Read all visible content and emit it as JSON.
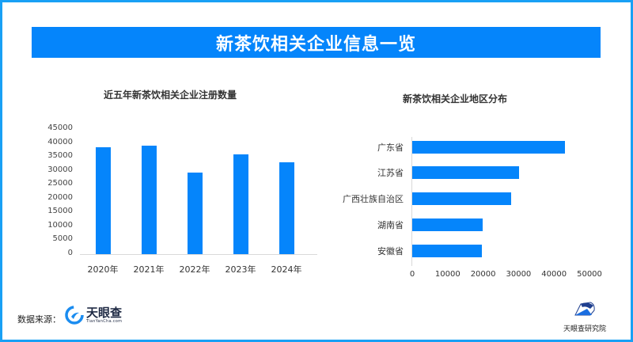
{
  "header": {
    "title": "新茶饮相关企业信息一览"
  },
  "colors": {
    "accent": "#0585fb",
    "frame": "#19a0f5",
    "axis": "#d9d9d9"
  },
  "footer": {
    "source_label": "数据来源：",
    "source_logo": {
      "name": "天眼查",
      "url_text": "TianYanCha.com",
      "icon": "tianyancha-logo-icon"
    },
    "institute_logo": {
      "name": "天眼查研究院",
      "icon": "tianyancha-institute-logo-icon"
    }
  },
  "chart_data": [
    {
      "type": "bar",
      "title": "近五年新茶饮相关企业注册数量",
      "categories": [
        "2020年",
        "2021年",
        "2022年",
        "2023年",
        "2024年"
      ],
      "values": [
        38400,
        39000,
        29300,
        35900,
        33000
      ],
      "xlabel": "",
      "ylabel": "",
      "ylim": [
        0,
        45000
      ],
      "yticks": [
        "45000",
        "40000",
        "35000",
        "30000",
        "25000",
        "20000",
        "15000",
        "10000",
        "5000",
        "0"
      ],
      "grid": false,
      "legend": null
    },
    {
      "type": "bar",
      "orientation": "horizontal",
      "title": "新茶饮相关企业地区分布",
      "categories": [
        "广东省",
        "江苏省",
        "广西壮族自治区",
        "湖南省",
        "安徽省"
      ],
      "values": [
        43000,
        30100,
        27900,
        19900,
        19600
      ],
      "xlabel": "",
      "ylabel": "",
      "xlim": [
        0,
        50000
      ],
      "xticks": [
        "0",
        "10000",
        "20000",
        "30000",
        "40000",
        "50000"
      ],
      "grid": false,
      "legend": null
    }
  ]
}
